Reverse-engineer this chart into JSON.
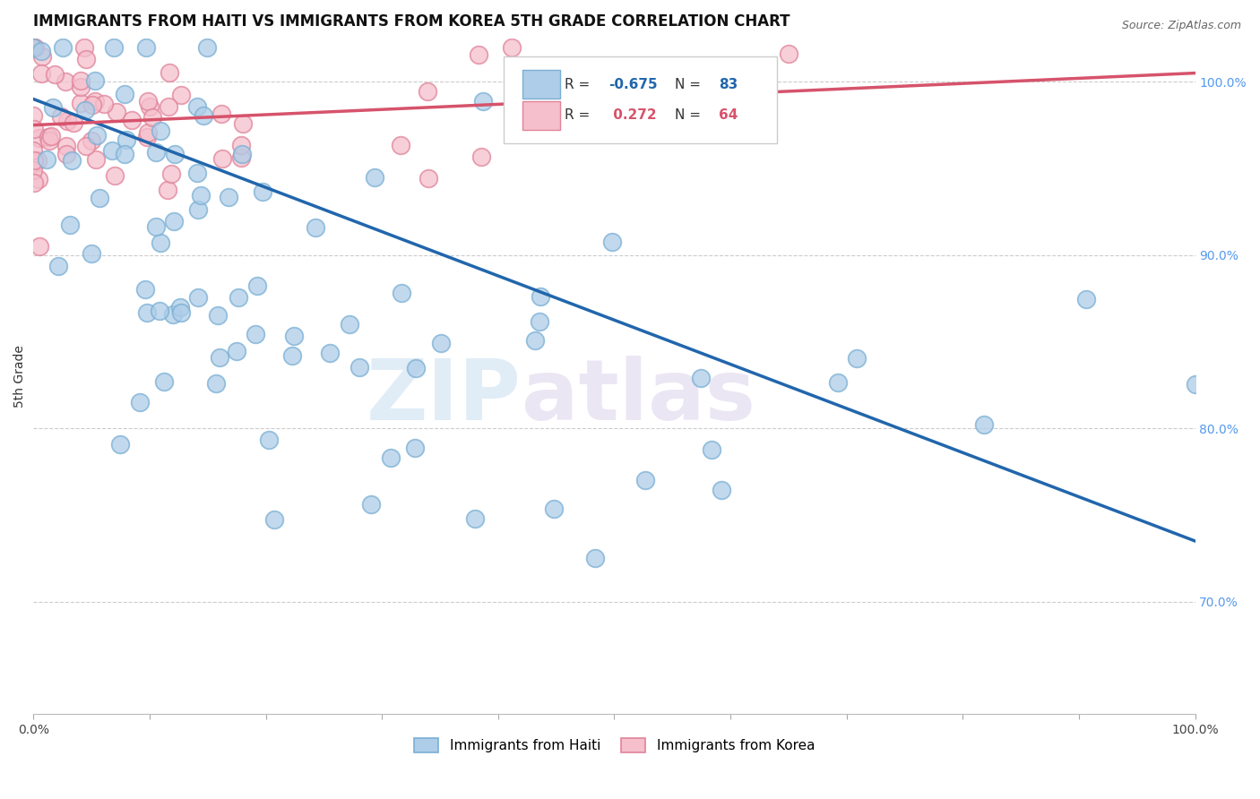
{
  "title": "IMMIGRANTS FROM HAITI VS IMMIGRANTS FROM KOREA 5TH GRADE CORRELATION CHART",
  "source": "Source: ZipAtlas.com",
  "ylabel": "5th Grade",
  "haiti_color": "#aecde8",
  "haiti_edge_color": "#7aafd4",
  "korea_color": "#f5bfcc",
  "korea_edge_color": "#e0839a",
  "haiti_line_color": "#2166ac",
  "korea_line_color": "#d6536b",
  "haiti_R": -0.675,
  "haiti_N": 83,
  "korea_R": 0.272,
  "korea_N": 64,
  "legend_label_haiti": "Immigrants from Haiti",
  "legend_label_korea": "Immigrants from Korea",
  "watermark_zip": "ZIP",
  "watermark_atlas": "atlas",
  "xlim": [
    0.0,
    1.0
  ],
  "ylim": [
    0.635,
    1.025
  ],
  "ytick_values": [
    1.0,
    0.9,
    0.8,
    0.7
  ],
  "ytick_labels": [
    "100.0%",
    "90.0%",
    "80.0%",
    "70.0%"
  ],
  "haiti_line_x": [
    0.0,
    1.0
  ],
  "haiti_line_y": [
    0.99,
    0.735
  ],
  "korea_line_x": [
    0.0,
    1.0
  ],
  "korea_line_y": [
    0.975,
    1.005
  ]
}
